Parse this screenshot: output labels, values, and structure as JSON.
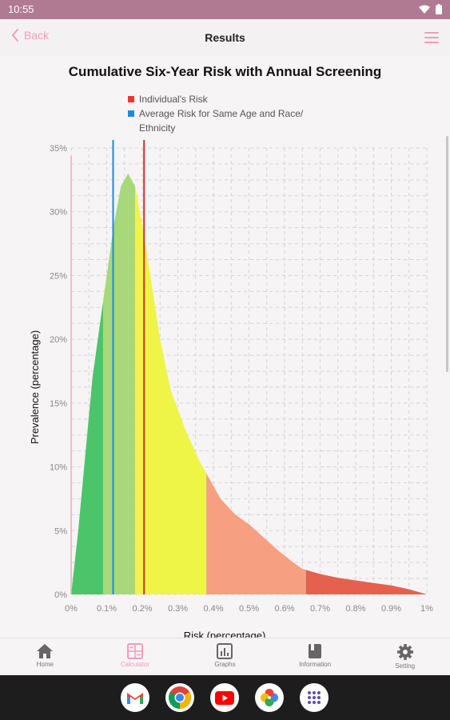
{
  "status_bar": {
    "time": "10:55"
  },
  "app_bar": {
    "back_label": "Back",
    "title": "Results"
  },
  "chart_data": {
    "type": "area",
    "title": "Cumulative Six-Year Risk with Annual Screening",
    "xlabel": "Risk (percentage)",
    "ylabel": "Prevalence (percentage)",
    "xlim": [
      0,
      1
    ],
    "ylim": [
      0,
      35
    ],
    "x_ticks": [
      "0%",
      "0.1%",
      "0.2%",
      "0.3%",
      "0.4%",
      "0.5%",
      "0.6%",
      "0.7%",
      "0.8%",
      "0.9%",
      "1%"
    ],
    "y_ticks": [
      "0%",
      "5%",
      "10%",
      "15%",
      "20%",
      "25%",
      "30%",
      "35%"
    ],
    "grid": true,
    "legend": [
      {
        "label": "Individual's Risk",
        "color": "#e53935"
      },
      {
        "label": "Average Risk for Same Age and Race/ Ethnicity",
        "color": "#1e88e5"
      }
    ],
    "curve": [
      {
        "x": 0.0,
        "y": 0
      },
      {
        "x": 0.02,
        "y": 5
      },
      {
        "x": 0.04,
        "y": 11
      },
      {
        "x": 0.06,
        "y": 17
      },
      {
        "x": 0.08,
        "y": 21
      },
      {
        "x": 0.1,
        "y": 25
      },
      {
        "x": 0.12,
        "y": 29
      },
      {
        "x": 0.14,
        "y": 32
      },
      {
        "x": 0.16,
        "y": 33
      },
      {
        "x": 0.18,
        "y": 32
      },
      {
        "x": 0.2,
        "y": 29
      },
      {
        "x": 0.22,
        "y": 25.5
      },
      {
        "x": 0.25,
        "y": 20
      },
      {
        "x": 0.28,
        "y": 16
      },
      {
        "x": 0.32,
        "y": 13
      },
      {
        "x": 0.36,
        "y": 10.5
      },
      {
        "x": 0.38,
        "y": 9.5
      },
      {
        "x": 0.42,
        "y": 7.5
      },
      {
        "x": 0.46,
        "y": 6.3
      },
      {
        "x": 0.5,
        "y": 5.5
      },
      {
        "x": 0.54,
        "y": 4.5
      },
      {
        "x": 0.58,
        "y": 3.5
      },
      {
        "x": 0.62,
        "y": 2.6
      },
      {
        "x": 0.65,
        "y": 2.0
      },
      {
        "x": 0.7,
        "y": 1.6
      },
      {
        "x": 0.75,
        "y": 1.3
      },
      {
        "x": 0.8,
        "y": 1.1
      },
      {
        "x": 0.85,
        "y": 0.9
      },
      {
        "x": 0.9,
        "y": 0.7
      },
      {
        "x": 0.95,
        "y": 0.4
      },
      {
        "x": 1.0,
        "y": 0
      }
    ],
    "zones": [
      {
        "from": 0.0,
        "to": 0.09,
        "color": "#4cc46a"
      },
      {
        "from": 0.09,
        "to": 0.18,
        "color": "#a8d87a"
      },
      {
        "from": 0.18,
        "to": 0.38,
        "color": "#eef547"
      },
      {
        "from": 0.38,
        "to": 0.66,
        "color": "#f6a081"
      },
      {
        "from": 0.66,
        "to": 1.0,
        "color": "#e5614e"
      }
    ],
    "individual_risk": 0.205,
    "average_risk": 0.118,
    "pink_axis_at": 0.0
  },
  "bottom_nav": [
    {
      "label": "Home",
      "icon": "home-icon"
    },
    {
      "label": "Calculator",
      "icon": "calculator-icon",
      "active": true
    },
    {
      "label": "Graphs",
      "icon": "graphs-icon"
    },
    {
      "label": "Information",
      "icon": "book-icon"
    },
    {
      "label": "Setting",
      "icon": "gear-icon"
    }
  ],
  "dock": [
    "gmail-icon",
    "chrome-icon",
    "youtube-icon",
    "photos-icon",
    "app-drawer-icon"
  ]
}
